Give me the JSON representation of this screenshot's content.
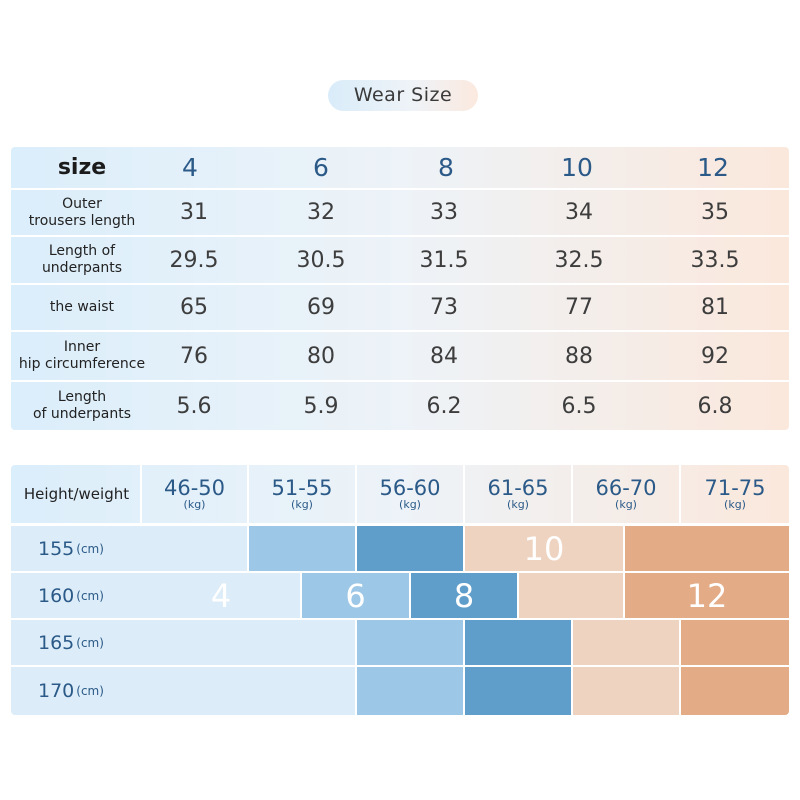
{
  "title": "Wear  Size",
  "size_table": {
    "header_label": "size",
    "sizes": [
      "4",
      "6",
      "8",
      "10",
      "12"
    ],
    "rows": [
      {
        "label_lines": [
          "Outer",
          "trousers length"
        ],
        "values": [
          "31",
          "32",
          "33",
          "34",
          "35"
        ]
      },
      {
        "label_lines": [
          "Length of",
          "underpants"
        ],
        "values": [
          "29.5",
          "30.5",
          "31.5",
          "32.5",
          "33.5"
        ]
      },
      {
        "label_lines": [
          "the waist",
          ""
        ],
        "values": [
          "65",
          "69",
          "73",
          "77",
          "81"
        ]
      },
      {
        "label_lines": [
          "Inner",
          "hip circumference"
        ],
        "values": [
          "76",
          "80",
          "84",
          "88",
          "92"
        ]
      },
      {
        "label_lines": [
          "Length",
          "of underpants"
        ],
        "values": [
          "5.6",
          "5.9",
          "6.2",
          "6.5",
          "6.8"
        ]
      }
    ]
  },
  "fit_chart": {
    "header_label": "Height/weight",
    "weight_ranges": [
      "46-50",
      "51-55",
      "56-60",
      "61-65",
      "66-70",
      "71-75"
    ],
    "weight_unit": "(kg)",
    "height_unit": "(cm)",
    "heights": [
      "155",
      "160",
      "165",
      "170"
    ],
    "size_labels": {
      "size_4": "4",
      "size_6": "6",
      "size_8": "8",
      "size_10": "10",
      "size_12": "12"
    },
    "colors": {
      "size_4": "#dcedf9",
      "size_6": "#9dc7e6",
      "size_8": "#5f9ecb",
      "size_10": "#efd3c1",
      "size_12": "#e3ab86"
    }
  }
}
